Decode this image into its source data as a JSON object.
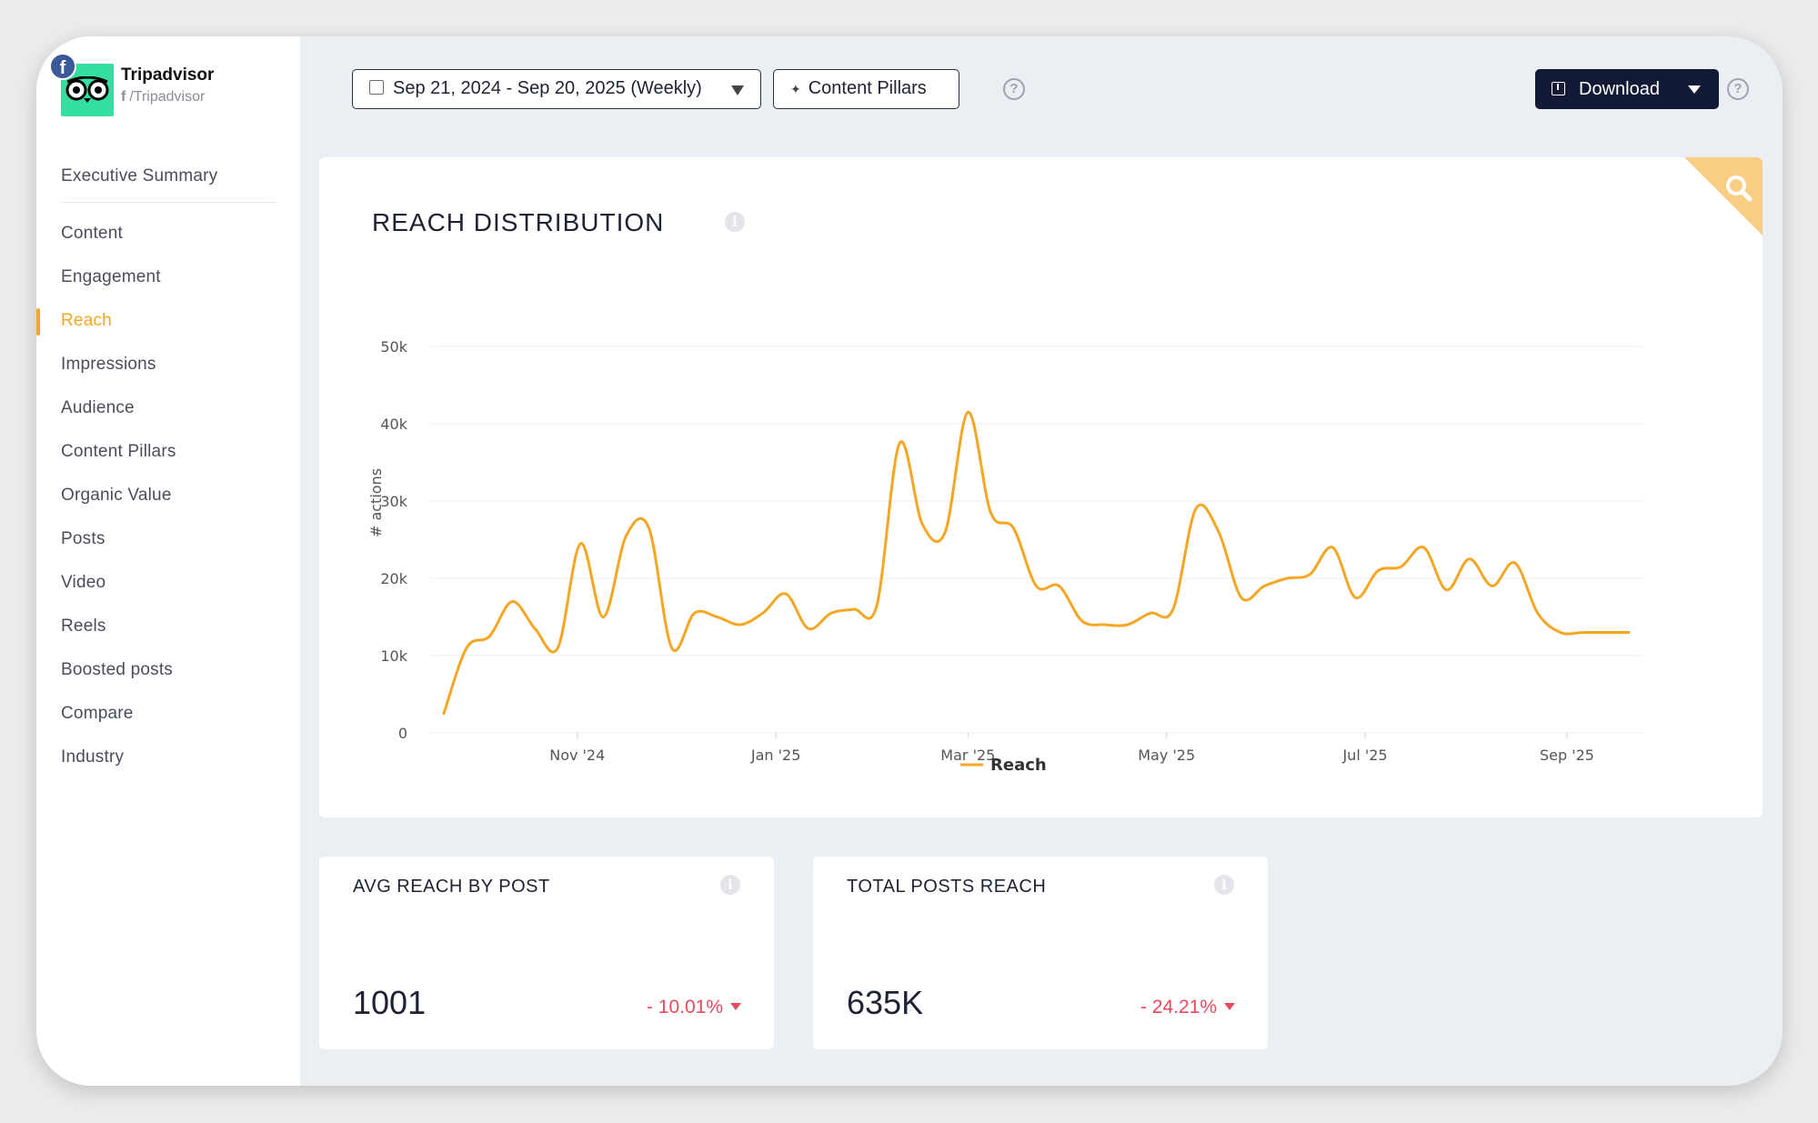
{
  "brand": {
    "name": "Tripadvisor",
    "handle": "/Tripadvisor",
    "network_badge": "f",
    "handle_icon": "f"
  },
  "nav": {
    "items": [
      "Executive Summary",
      "Content",
      "Engagement",
      "Reach",
      "Impressions",
      "Audience",
      "Content Pillars",
      "Organic Value",
      "Posts",
      "Video",
      "Reels",
      "Boosted posts",
      "Compare",
      "Industry"
    ],
    "active": "Reach"
  },
  "toolbar": {
    "date_range": "Sep 21, 2024 - Sep 20, 2025 (Weekly)",
    "content_pillars": "Content Pillars",
    "download": "Download",
    "help_glyph": "?"
  },
  "chart_card": {
    "title": "REACH DISTRIBUTION",
    "info_glyph": "i"
  },
  "chart_data": {
    "type": "line",
    "title": "REACH DISTRIBUTION",
    "ylabel": "# actions",
    "xlabel": "",
    "ylim": [
      0,
      50000
    ],
    "y_ticks": [
      "0",
      "10k",
      "20k",
      "30k",
      "40k",
      "50k"
    ],
    "x_tick_labels": [
      "Nov '24",
      "Jan '25",
      "Mar '25",
      "May '25",
      "Jul '25",
      "Sep '25"
    ],
    "x_tick_dates": [
      "2024-11-01",
      "2025-01-01",
      "2025-03-01",
      "2025-05-01",
      "2025-07-01",
      "2025-09-01"
    ],
    "x_range": [
      "2024-09-21",
      "2025-09-20"
    ],
    "grid": true,
    "legend": "bottom-center",
    "series": [
      {
        "name": "Reach",
        "color": "#f5a623",
        "x": [
          "2024-09-21",
          "2024-09-28",
          "2024-10-05",
          "2024-10-12",
          "2024-10-19",
          "2024-10-26",
          "2024-11-02",
          "2024-11-09",
          "2024-11-16",
          "2024-11-23",
          "2024-11-30",
          "2024-12-07",
          "2024-12-14",
          "2024-12-21",
          "2024-12-28",
          "2025-01-04",
          "2025-01-11",
          "2025-01-18",
          "2025-01-25",
          "2025-02-01",
          "2025-02-08",
          "2025-02-15",
          "2025-02-22",
          "2025-03-01",
          "2025-03-08",
          "2025-03-15",
          "2025-03-22",
          "2025-03-29",
          "2025-04-05",
          "2025-04-12",
          "2025-04-19",
          "2025-04-26",
          "2025-05-03",
          "2025-05-10",
          "2025-05-17",
          "2025-05-24",
          "2025-05-31",
          "2025-06-07",
          "2025-06-14",
          "2025-06-21",
          "2025-06-28",
          "2025-07-05",
          "2025-07-12",
          "2025-07-19",
          "2025-07-26",
          "2025-08-02",
          "2025-08-09",
          "2025-08-16",
          "2025-08-23",
          "2025-08-30",
          "2025-09-06",
          "2025-09-13",
          "2025-09-20"
        ],
        "values": [
          2500,
          11000,
          12500,
          17000,
          13500,
          11000,
          24500,
          15000,
          25500,
          26500,
          11000,
          15500,
          15000,
          14000,
          15500,
          18000,
          13500,
          15500,
          16000,
          16500,
          37500,
          27000,
          26000,
          41500,
          28500,
          26500,
          19000,
          19000,
          14500,
          14000,
          14000,
          15500,
          16000,
          29000,
          26000,
          17500,
          19000,
          20000,
          20500,
          24000,
          17500,
          21000,
          21500,
          24000,
          18500,
          22500,
          19000,
          22000,
          15500,
          13000,
          13000,
          13000,
          13000
        ]
      }
    ]
  },
  "kpis": [
    {
      "title": "AVG REACH BY POST",
      "value": "1001",
      "delta": "- 10.01%",
      "trend": "down"
    },
    {
      "title": "TOTAL POSTS REACH",
      "value": "635K",
      "delta": "- 24.21%",
      "trend": "down"
    }
  ],
  "colors": {
    "accent": "#f5a623",
    "negative": "#e84a5f",
    "primary_button": "#131a35",
    "brand_logo": "#34e0a1",
    "facebook": "#3b5998"
  },
  "icons": [
    "facebook-icon",
    "tripadvisor-owl-icon",
    "calendar-icon",
    "sparkle-icon",
    "help-icon",
    "download-icon",
    "search-icon",
    "info-icon",
    "caret-down-icon"
  ]
}
